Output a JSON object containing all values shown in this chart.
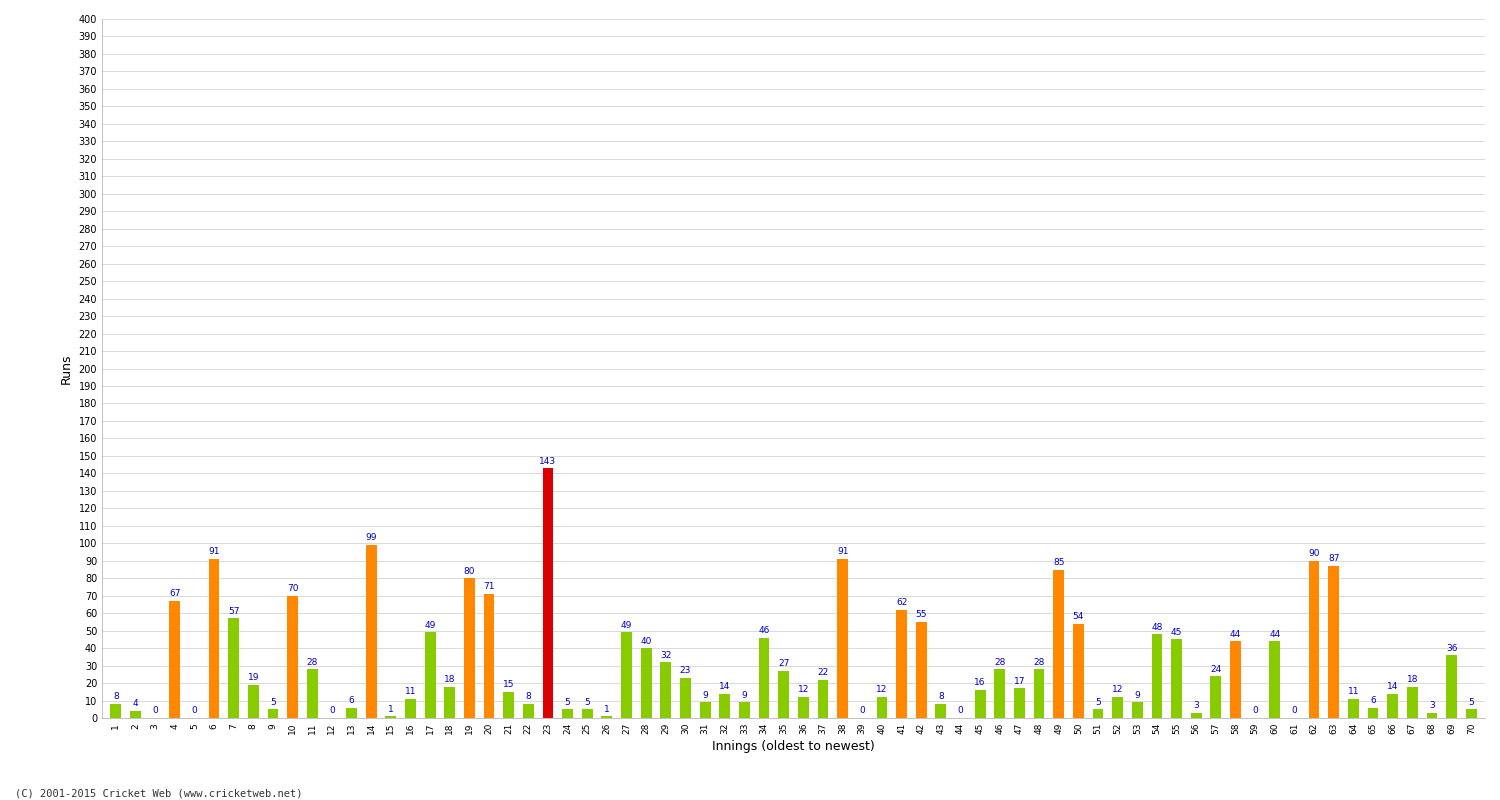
{
  "xlabel": "Innings (oldest to newest)",
  "ylabel": "Runs",
  "ylim": [
    0,
    400
  ],
  "background_color": "#ffffff",
  "grid_color": "#cccccc",
  "orange_color": "#ff8800",
  "green_color": "#88cc00",
  "red_color": "#dd0000",
  "label_color": "#0000cc",
  "innings_data": [
    [
      1,
      8,
      "green"
    ],
    [
      2,
      4,
      "green"
    ],
    [
      3,
      0,
      "green"
    ],
    [
      4,
      67,
      "orange"
    ],
    [
      5,
      0,
      "green"
    ],
    [
      6,
      91,
      "orange"
    ],
    [
      7,
      57,
      "green"
    ],
    [
      8,
      19,
      "green"
    ],
    [
      9,
      5,
      "green"
    ],
    [
      10,
      70,
      "orange"
    ],
    [
      11,
      28,
      "green"
    ],
    [
      12,
      0,
      "green"
    ],
    [
      13,
      6,
      "green"
    ],
    [
      14,
      99,
      "orange"
    ],
    [
      15,
      1,
      "green"
    ],
    [
      16,
      11,
      "green"
    ],
    [
      17,
      49,
      "green"
    ],
    [
      18,
      18,
      "green"
    ],
    [
      19,
      80,
      "orange"
    ],
    [
      20,
      71,
      "orange"
    ],
    [
      21,
      15,
      "green"
    ],
    [
      22,
      8,
      "green"
    ],
    [
      23,
      143,
      "red"
    ],
    [
      24,
      5,
      "green"
    ],
    [
      25,
      5,
      "green"
    ],
    [
      26,
      1,
      "green"
    ],
    [
      27,
      49,
      "green"
    ],
    [
      28,
      40,
      "green"
    ],
    [
      29,
      32,
      "green"
    ],
    [
      30,
      23,
      "green"
    ],
    [
      31,
      9,
      "green"
    ],
    [
      32,
      14,
      "green"
    ],
    [
      33,
      9,
      "green"
    ],
    [
      34,
      46,
      "green"
    ],
    [
      35,
      27,
      "green"
    ],
    [
      36,
      12,
      "green"
    ],
    [
      37,
      22,
      "green"
    ],
    [
      38,
      91,
      "orange"
    ],
    [
      39,
      0,
      "green"
    ],
    [
      40,
      12,
      "green"
    ],
    [
      41,
      62,
      "orange"
    ],
    [
      42,
      55,
      "orange"
    ],
    [
      43,
      8,
      "green"
    ],
    [
      44,
      0,
      "green"
    ],
    [
      45,
      16,
      "green"
    ],
    [
      46,
      28,
      "green"
    ],
    [
      47,
      17,
      "green"
    ],
    [
      48,
      28,
      "green"
    ],
    [
      49,
      85,
      "orange"
    ],
    [
      50,
      54,
      "orange"
    ],
    [
      51,
      5,
      "green"
    ],
    [
      52,
      12,
      "green"
    ],
    [
      53,
      9,
      "green"
    ],
    [
      54,
      48,
      "green"
    ],
    [
      55,
      45,
      "green"
    ],
    [
      56,
      3,
      "green"
    ],
    [
      57,
      24,
      "green"
    ],
    [
      58,
      44,
      "orange"
    ],
    [
      59,
      0,
      "green"
    ],
    [
      60,
      44,
      "green"
    ],
    [
      61,
      0,
      "green"
    ],
    [
      62,
      90,
      "orange"
    ],
    [
      63,
      87,
      "orange"
    ],
    [
      64,
      11,
      "green"
    ],
    [
      65,
      6,
      "green"
    ],
    [
      66,
      14,
      "green"
    ],
    [
      67,
      18,
      "green"
    ],
    [
      68,
      3,
      "green"
    ],
    [
      69,
      36,
      "green"
    ],
    [
      70,
      5,
      "green"
    ]
  ],
  "footer": "(C) 2001-2015 Cricket Web (www.cricketweb.net)"
}
